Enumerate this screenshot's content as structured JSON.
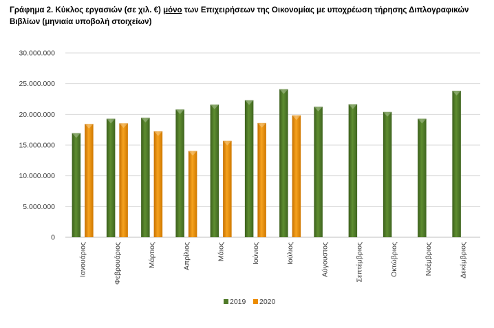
{
  "title": {
    "prefix": "Γράφημα 2",
    "part1": ". Κύκλος εργασιών (σε χιλ. €) ",
    "underlined": "μόνο",
    "part2": " των Επιχειρήσεων της Οικονομίας με υποχρέωση τήρησης Διπλογραφικών Βιβλίων (μηνιαία υποβολή στοιχείων)"
  },
  "chart_data": {
    "type": "bar",
    "categories": [
      "Ιανουάριος",
      "Φεβρουάριος",
      "Μάρτιος",
      "Απρίλιος",
      "Μάιος",
      "Ιούνιος",
      "Ιούλιος",
      "Αύγουστος",
      "Σεπτέμβριος",
      "Οκτώβριος",
      "Νοέμβριος",
      "Δεκέμβριος"
    ],
    "series": [
      {
        "name": "2019",
        "color": "#4f7a28",
        "values": [
          16950000,
          19300000,
          19450000,
          20800000,
          21600000,
          22300000,
          24100000,
          21250000,
          21650000,
          20400000,
          19300000,
          23850000
        ]
      },
      {
        "name": "2020",
        "color": "#ec8c00",
        "values": [
          18450000,
          18550000,
          17250000,
          14050000,
          15700000,
          18600000,
          19850000,
          null,
          null,
          null,
          null,
          null
        ]
      }
    ],
    "yticks": [
      "0",
      "5.000.000",
      "10.000.000",
      "15.000.000",
      "20.000.000",
      "25.000.000",
      "30.000.000"
    ],
    "ylim": [
      0,
      30000000
    ],
    "ystep": 5000000,
    "grid": true,
    "legend_position": "bottom"
  }
}
